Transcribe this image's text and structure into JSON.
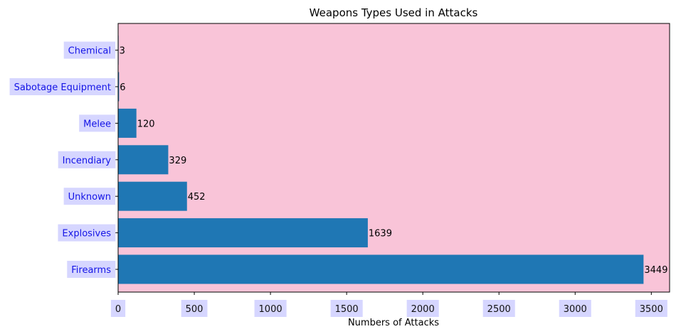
{
  "chart_data": {
    "type": "bar",
    "orientation": "horizontal",
    "title": "Weapons Types Used in Attacks",
    "xlabel": "Numbers of Attacks",
    "ylabel": "",
    "categories": [
      "Firearms",
      "Explosives",
      "Unknown",
      "Incendiary",
      "Melee",
      "Sabotage Equipment",
      "Chemical"
    ],
    "values": [
      3449,
      1639,
      452,
      329,
      120,
      6,
      3
    ],
    "data_labels": [
      "3449",
      "1639",
      "452",
      "329",
      "120",
      "6",
      "3"
    ],
    "xlim": [
      0,
      3620
    ],
    "xticks": [
      0,
      500,
      1000,
      1500,
      2000,
      2500,
      3000,
      3500
    ],
    "xtick_labels": [
      "0",
      "500",
      "1000",
      "1500",
      "2000",
      "2500",
      "3000",
      "3500"
    ],
    "grid": false,
    "colors": {
      "bar": "#1f77b4",
      "plot_background": "#f9c4d8",
      "tick_box": "#d6d6ff",
      "ytick_text": "#1414e6"
    }
  }
}
